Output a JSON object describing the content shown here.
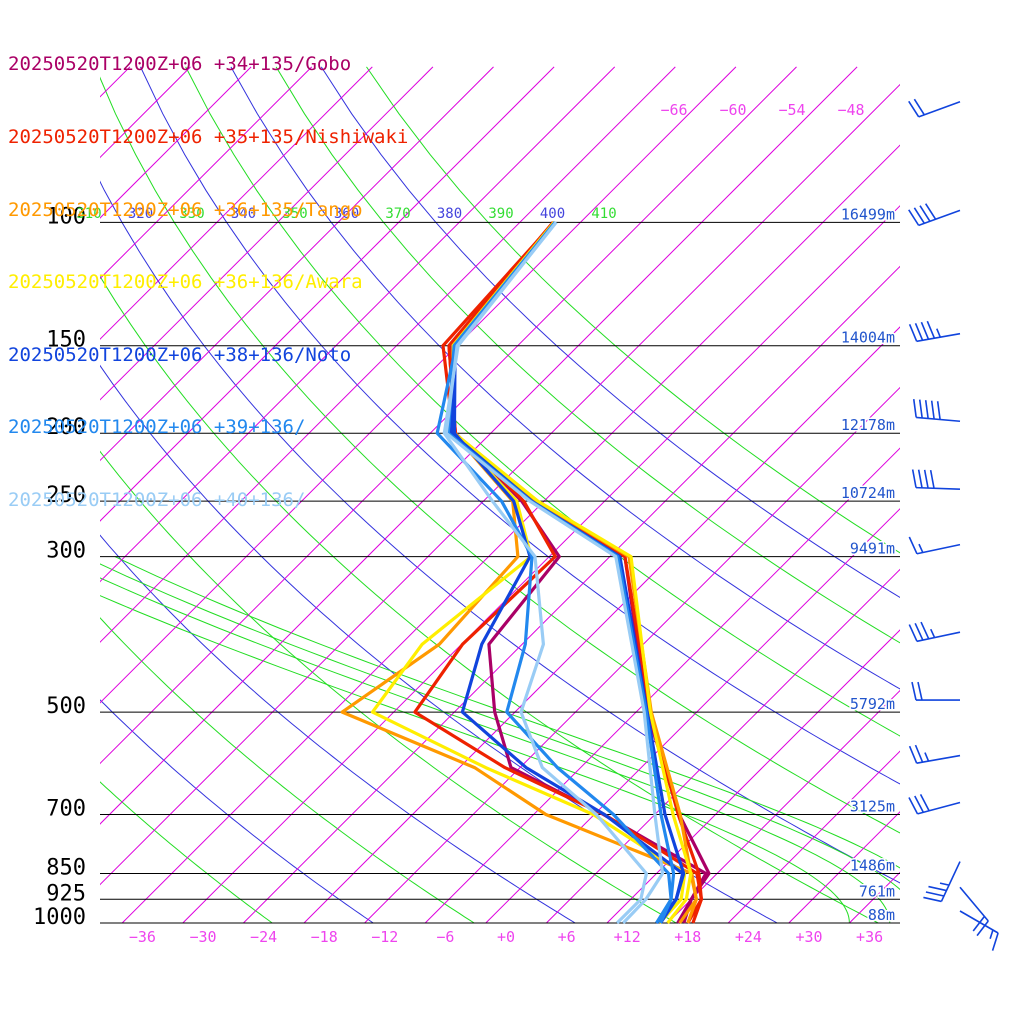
{
  "chart_data": {
    "type": "line",
    "diagram": "skew-T log-p",
    "pressure_levels": [
      {
        "p": 100,
        "label": "100",
        "height": "16499m"
      },
      {
        "p": 150,
        "label": "150",
        "height": "14004m"
      },
      {
        "p": 200,
        "label": "200",
        "height": "12178m"
      },
      {
        "p": 250,
        "label": "250",
        "height": "10724m"
      },
      {
        "p": 300,
        "label": "300",
        "height": "9491m"
      },
      {
        "p": 500,
        "label": "500",
        "height": "5792m"
      },
      {
        "p": 700,
        "label": "700",
        "height": "3125m"
      },
      {
        "p": 850,
        "label": "850",
        "height": "1486m"
      },
      {
        "p": 925,
        "label": "925",
        "height": "761m"
      },
      {
        "p": 1000,
        "label": "1000",
        "height": "88m"
      }
    ],
    "temperature_ticks": [
      {
        "t": -36,
        "label": "−36"
      },
      {
        "t": -30,
        "label": "−30"
      },
      {
        "t": -24,
        "label": "−24"
      },
      {
        "t": -18,
        "label": "−18"
      },
      {
        "t": -12,
        "label": "−12"
      },
      {
        "t": -6,
        "label": "−6"
      },
      {
        "t": 0,
        "label": "+0"
      },
      {
        "t": 6,
        "label": "+6"
      },
      {
        "t": 12,
        "label": "+12"
      },
      {
        "t": 18,
        "label": "+18"
      },
      {
        "t": 24,
        "label": "+24"
      },
      {
        "t": 30,
        "label": "+30"
      },
      {
        "t": 36,
        "label": "+36"
      }
    ],
    "upper_isotherm_labels": [
      "−66",
      "−60",
      "−54",
      "−48"
    ],
    "theta_labels": [
      {
        "text": "310",
        "color": "#33dd33"
      },
      {
        "text": "320",
        "color": "#4444dd"
      },
      {
        "text": "330",
        "color": "#33dd33"
      },
      {
        "text": "340",
        "color": "#4444dd"
      },
      {
        "text": "350",
        "color": "#33dd33"
      },
      {
        "text": "360",
        "color": "#4444dd"
      },
      {
        "text": "370",
        "color": "#33dd33"
      },
      {
        "text": "380",
        "color": "#4444dd"
      },
      {
        "text": "390",
        "color": "#33dd33"
      },
      {
        "text": "400",
        "color": "#4444dd"
      },
      {
        "text": "410",
        "color": "#33dd33"
      }
    ],
    "series": [
      {
        "name": "20250520T1200Z+06 +34+135/Gobo",
        "color": "#aa0066",
        "temperature": [
          [
            1000,
            17.6
          ],
          [
            925,
            16.0
          ],
          [
            850,
            15.2
          ],
          [
            700,
            6.4
          ],
          [
            500,
            -6.9
          ],
          [
            300,
            -24.5
          ],
          [
            250,
            -38.8
          ],
          [
            200,
            -53.7
          ],
          [
            150,
            -62.6
          ],
          [
            100,
            -64.6
          ]
        ],
        "dewpoint": [
          [
            1000,
            17.0
          ],
          [
            925,
            16.0
          ],
          [
            850,
            14.9
          ],
          [
            700,
            -1.1
          ],
          [
            600,
            -14.9
          ],
          [
            500,
            -22.0
          ],
          [
            400,
            -29.3
          ],
          [
            300,
            -31.0
          ],
          [
            250,
            -40.2
          ],
          [
            200,
            -53.5
          ],
          [
            150,
            -62.8
          ],
          [
            100,
            -64.7
          ]
        ]
      },
      {
        "name": "20250520T1200Z+06 +35+135/Nishiwaki",
        "color": "#ee2200",
        "temperature": [
          [
            1000,
            18.5
          ],
          [
            925,
            17.0
          ],
          [
            850,
            14.2
          ],
          [
            700,
            6.3
          ],
          [
            500,
            -6.6
          ],
          [
            300,
            -24.5
          ],
          [
            250,
            -38.8
          ],
          [
            200,
            -53.7
          ],
          [
            150,
            -63.4
          ],
          [
            100,
            -64.6
          ]
        ],
        "dewpoint": [
          [
            1000,
            18.0
          ],
          [
            925,
            17.0
          ],
          [
            850,
            14.0
          ],
          [
            700,
            -1.0
          ],
          [
            600,
            -15.5
          ],
          [
            500,
            -29.9
          ],
          [
            400,
            -31.9
          ],
          [
            300,
            -31.4
          ],
          [
            250,
            -40.0
          ],
          [
            200,
            -53.5
          ],
          [
            150,
            -62.8
          ],
          [
            100,
            -64.7
          ]
        ]
      },
      {
        "name": "20250520T1200Z+06 +36+135/Tango",
        "color": "#ff9900",
        "temperature": [
          [
            1000,
            18.0
          ],
          [
            925,
            16.5
          ],
          [
            850,
            13.4
          ],
          [
            700,
            6.5
          ],
          [
            500,
            -6.5
          ],
          [
            300,
            -24.1
          ],
          [
            250,
            -38.7
          ],
          [
            200,
            -53.6
          ],
          [
            150,
            -62.4
          ],
          [
            100,
            -64.6
          ]
        ],
        "dewpoint": [
          [
            1000,
            17.2
          ],
          [
            925,
            16.5
          ],
          [
            850,
            13.5
          ],
          [
            700,
            -6.8
          ],
          [
            600,
            -18.5
          ],
          [
            500,
            -37.1
          ],
          [
            400,
            -34.2
          ],
          [
            300,
            -35.1
          ],
          [
            250,
            -41.1
          ],
          [
            200,
            -53.7
          ],
          [
            150,
            -62.4
          ],
          [
            100,
            -64.6
          ]
        ]
      },
      {
        "name": "20250520T1200Z+06 +36+136/Awara",
        "color": "#ffee00",
        "temperature": [
          [
            1000,
            16.0
          ],
          [
            925,
            15.5
          ],
          [
            850,
            13.4
          ],
          [
            700,
            5.8
          ],
          [
            500,
            -6.6
          ],
          [
            300,
            -23.9
          ],
          [
            250,
            -38.6
          ],
          [
            200,
            -53.6
          ],
          [
            150,
            -62.4
          ],
          [
            100,
            -64.6
          ]
        ],
        "dewpoint": [
          [
            1000,
            15.2
          ],
          [
            925,
            15.0
          ],
          [
            850,
            12.8
          ],
          [
            700,
            -2.1
          ],
          [
            600,
            -17.4
          ],
          [
            500,
            -34.1
          ],
          [
            400,
            -35.9
          ],
          [
            300,
            -33.8
          ],
          [
            250,
            -40.7
          ],
          [
            200,
            -53.7
          ],
          [
            150,
            -62.4
          ],
          [
            100,
            -64.6
          ]
        ]
      },
      {
        "name": "20250520T1200Z+06 +38+136/Noto",
        "color": "#1144dd",
        "temperature": [
          [
            1000,
            15.3
          ],
          [
            925,
            14.5
          ],
          [
            850,
            12.7
          ],
          [
            700,
            5.0
          ],
          [
            500,
            -6.9
          ],
          [
            300,
            -25.0
          ],
          [
            250,
            -39.2
          ],
          [
            200,
            -53.9
          ],
          [
            150,
            -62.2
          ],
          [
            100,
            -64.5
          ]
        ],
        "dewpoint": [
          [
            1000,
            14.9
          ],
          [
            925,
            14.5
          ],
          [
            850,
            12.6
          ],
          [
            700,
            -1.0
          ],
          [
            600,
            -13.4
          ],
          [
            500,
            -25.2
          ],
          [
            400,
            -30.0
          ],
          [
            300,
            -33.9
          ],
          [
            250,
            -41.0
          ],
          [
            200,
            -53.6
          ],
          [
            150,
            -62.2
          ],
          [
            100,
            -64.5
          ]
        ]
      },
      {
        "name": "20250520T1200Z+06 +39+136/",
        "color": "#2288ee",
        "temperature": [
          [
            1000,
            15.3
          ],
          [
            925,
            14.0
          ],
          [
            850,
            11.7
          ],
          [
            700,
            4.6
          ],
          [
            500,
            -7.0
          ],
          [
            300,
            -25.2
          ],
          [
            250,
            -39.3
          ],
          [
            200,
            -54.2
          ],
          [
            150,
            -62.3
          ],
          [
            100,
            -64.5
          ]
        ],
        "dewpoint": [
          [
            1000,
            14.9
          ],
          [
            925,
            14.0
          ],
          [
            850,
            11.2
          ],
          [
            700,
            -0.1
          ],
          [
            600,
            -10.3
          ],
          [
            500,
            -20.8
          ],
          [
            400,
            -25.7
          ],
          [
            300,
            -33.7
          ],
          [
            250,
            -42.2
          ],
          [
            200,
            -55.3
          ],
          [
            150,
            -62.1
          ],
          [
            100,
            -64.5
          ]
        ]
      },
      {
        "name": "20250520T1200Z+06 +40+136/",
        "color": "#99ccf5",
        "temperature": [
          [
            1000,
            11.6
          ],
          [
            925,
            11.5
          ],
          [
            850,
            10.6
          ],
          [
            700,
            4.0
          ],
          [
            500,
            -7.2
          ],
          [
            300,
            -25.4
          ],
          [
            250,
            -39.4
          ],
          [
            200,
            -54.4
          ],
          [
            150,
            -62.0
          ],
          [
            100,
            -64.4
          ]
        ],
        "dewpoint": [
          [
            1000,
            11.0
          ],
          [
            925,
            11.0
          ],
          [
            850,
            9.0
          ],
          [
            700,
            -1.8
          ],
          [
            600,
            -11.8
          ],
          [
            500,
            -19.4
          ],
          [
            400,
            -23.9
          ],
          [
            300,
            -33.4
          ],
          [
            250,
            -43.1
          ],
          [
            200,
            -54.6
          ],
          [
            150,
            -61.9
          ],
          [
            100,
            -64.4
          ]
        ]
      }
    ],
    "wind_barbs": [
      {
        "p": 1000,
        "dir": 120,
        "speed_kt": 15
      },
      {
        "p": 925,
        "dir": 140,
        "speed_kt": 20
      },
      {
        "p": 850,
        "dir": 205,
        "speed_kt": 35
      },
      {
        "p": 700,
        "dir": 255,
        "speed_kt": 30
      },
      {
        "p": 600,
        "dir": 260,
        "speed_kt": 25
      },
      {
        "p": 500,
        "dir": 270,
        "speed_kt": 20
      },
      {
        "p": 400,
        "dir": 258,
        "speed_kt": 35
      },
      {
        "p": 300,
        "dir": 258,
        "speed_kt": 15
      },
      {
        "p": 250,
        "dir": 272,
        "speed_kt": 40
      },
      {
        "p": 200,
        "dir": 275,
        "speed_kt": 50
      },
      {
        "p": 150,
        "dir": 260,
        "speed_kt": 45
      },
      {
        "p": 100,
        "dir": 250,
        "speed_kt": 40
      },
      {
        "p": 70,
        "dir": 250,
        "speed_kt": 20
      }
    ]
  },
  "colors": {
    "isotherm": "#dd00dd",
    "isobar": "#000000",
    "dry_adiabat_a": "#3333dd",
    "dry_adiabat_b": "#22dd22",
    "height_label": "#2255cc",
    "wind_barb": "#1144dd",
    "temperature_label": "#ee44ee"
  }
}
